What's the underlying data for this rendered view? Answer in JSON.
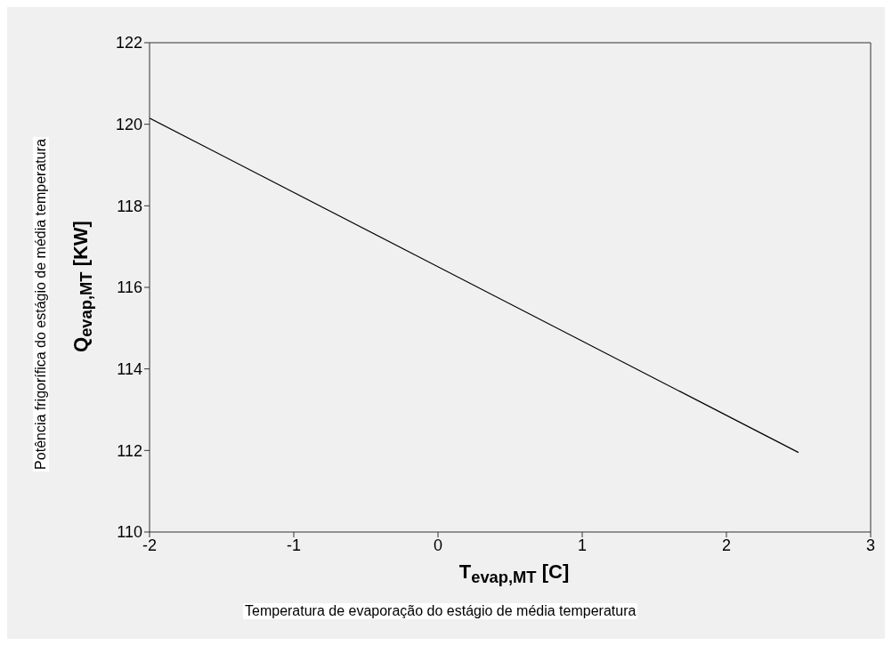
{
  "chart_data": {
    "type": "line",
    "xlabel": "T$_{evap,MT}$  [C]",
    "ylabel": "Q$_{evap,MT}$  [KW]",
    "annotations": [
      "Potência frigorífica do estágio de média temperatura",
      "Temperatura de evaporação do estágio de média temperatura"
    ],
    "series": [
      {
        "color": "#000000",
        "x": [
          -2,
          2.5
        ],
        "values": [
          120.15,
          111.95
        ]
      }
    ],
    "xlim": [
      -2,
      3
    ],
    "xticks": [
      -2,
      -1,
      0,
      1,
      2,
      3
    ],
    "ylim": [
      110,
      122
    ],
    "yticks": [
      110,
      112,
      114,
      116,
      118,
      120,
      122
    ],
    "grid": false,
    "legend": false,
    "marker": "none",
    "line_style": "solid"
  }
}
